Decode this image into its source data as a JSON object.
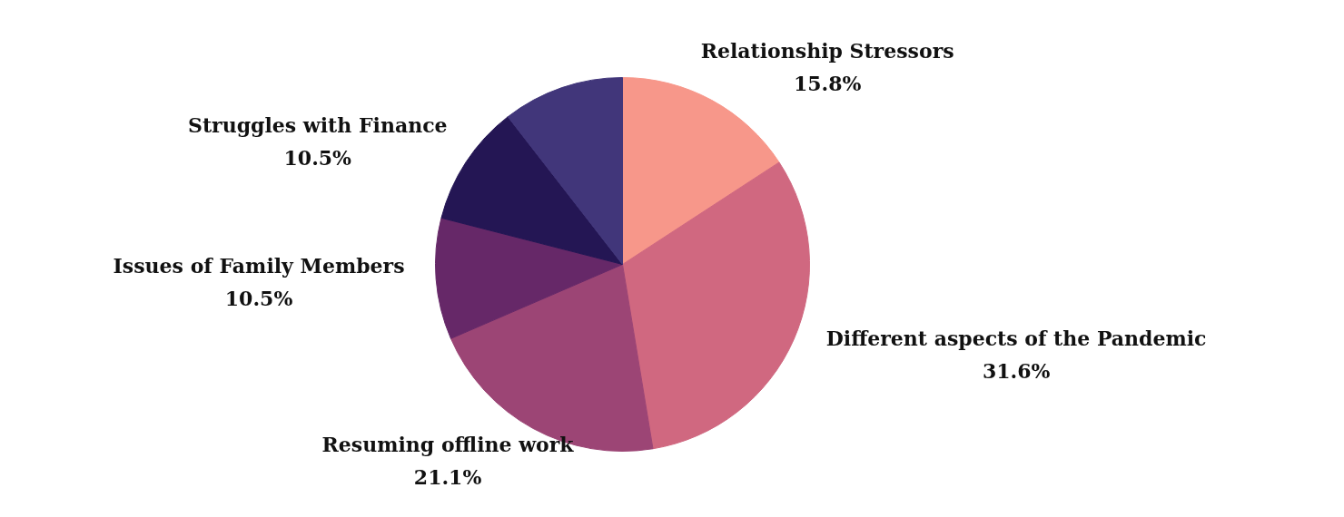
{
  "chart_data": {
    "type": "pie",
    "categories": [
      "Relationship Stressors",
      "Different aspects of the Pandemic",
      "Resuming offline work",
      "Issues of Family Members",
      "Struggles with Finance",
      null
    ],
    "values": [
      15.8,
      31.6,
      21.1,
      10.5,
      10.5,
      10.5
    ],
    "value_labels": [
      "15.8%",
      "31.6%",
      "21.1%",
      "10.5%",
      "10.5%",
      null
    ],
    "colors": [
      "#f7978a",
      "#d06880",
      "#9c4575",
      "#662868",
      "#241654",
      "#41367a"
    ]
  }
}
